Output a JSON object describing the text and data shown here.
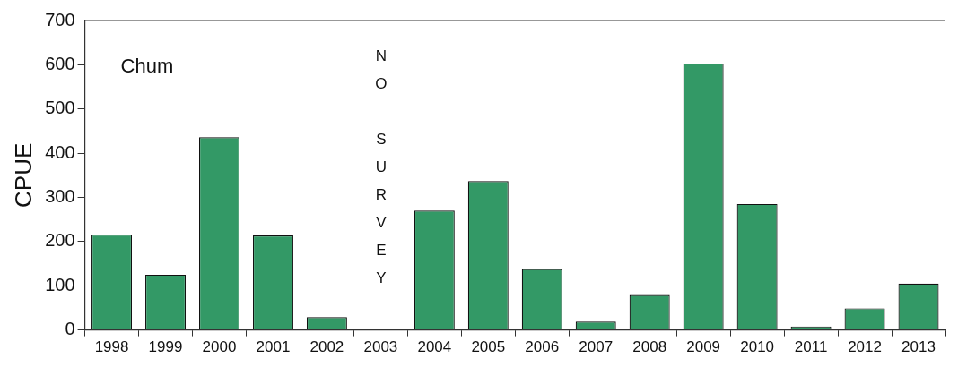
{
  "chart_data": {
    "type": "bar",
    "ylabel": "CPUE",
    "categories": [
      "1998",
      "1999",
      "2000",
      "2001",
      "2002",
      "2003",
      "2004",
      "2005",
      "2006",
      "2007",
      "2008",
      "2009",
      "2010",
      "2011",
      "2012",
      "2013"
    ],
    "values": [
      216,
      125,
      436,
      214,
      29,
      null,
      270,
      337,
      138,
      19,
      79,
      603,
      285,
      8,
      49,
      105
    ],
    "color": "#339966",
    "ylim": [
      0,
      700
    ],
    "yticks": [
      0,
      100,
      200,
      300,
      400,
      500,
      600,
      700
    ],
    "grid": false,
    "legend": false,
    "annotations": [
      "Chum",
      "NO SURVEY"
    ]
  }
}
